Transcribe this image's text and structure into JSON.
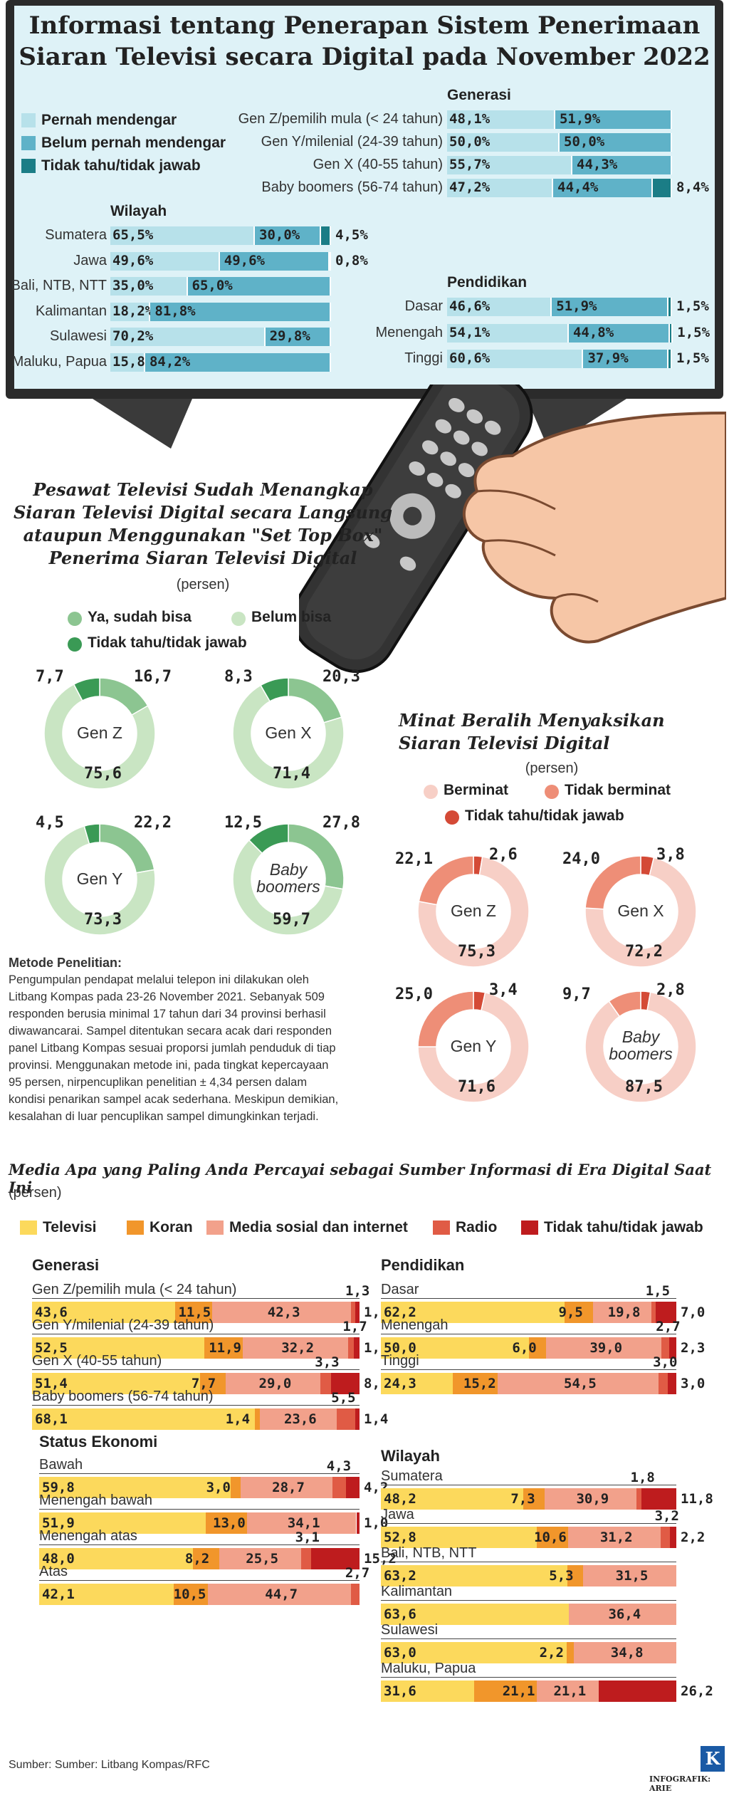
{
  "colors": {
    "heard": "#b7e1ea",
    "not_heard": "#5fb2c8",
    "dont_know_tv": "#1b7d86",
    "yes": "#8cc591",
    "no": "#c9e5c3",
    "dk_green": "#3a9a55",
    "interested": "#f7cfc6",
    "not_interested": "#ee8e77",
    "dk_red": "#d44a36",
    "tv": "#fcd95c",
    "newspaper": "#f1962b",
    "social": "#f2a18b",
    "radio": "#e05b45",
    "dontknow": "#be1c1e"
  },
  "tv_section": {
    "title_line1": "Informasi tentang Penerapan Sistem Penerimaan",
    "title_line2": "Siaran Televisi secara Digital pada November 2022",
    "legend": [
      "Pernah mendengar",
      "Belum pernah mendengar",
      "Tidak tahu/tidak jawab"
    ],
    "generasi_title": "Generasi",
    "wilayah_title": "Wilayah",
    "pendidikan_title": "Pendidikan"
  },
  "remote_icon": "tv-remote-hand-icon",
  "chart_data": [
    {
      "type": "bar",
      "name": "Generasi",
      "categories": [
        "Gen Z/pemilih mula (< 24 tahun)",
        "Gen Y/milenial (24-39 tahun)",
        "Gen X (40-55 tahun)",
        "Baby boomers (56-74 tahun)"
      ],
      "series": [
        {
          "name": "Pernah mendengar",
          "values": [
            48.1,
            50.0,
            55.7,
            47.2
          ],
          "labels": [
            "48,1%",
            "50,0%",
            "55,7%",
            "47,2%"
          ]
        },
        {
          "name": "Belum pernah mendengar",
          "values": [
            51.9,
            50.0,
            44.3,
            44.4
          ],
          "labels": [
            "51,9%",
            "50,0%",
            "44,3%",
            "44,4%"
          ]
        },
        {
          "name": "Tidak tahu/tidak jawab",
          "values": [
            0,
            0,
            0,
            8.4
          ],
          "labels": [
            "",
            "",
            "",
            "8,4%"
          ]
        }
      ]
    },
    {
      "type": "bar",
      "name": "Wilayah",
      "categories": [
        "Sumatera",
        "Jawa",
        "Bali, NTB, NTT",
        "Kalimantan",
        "Sulawesi",
        "Maluku, Papua"
      ],
      "series": [
        {
          "name": "Pernah mendengar",
          "values": [
            65.5,
            49.6,
            35.0,
            18.2,
            70.2,
            15.8
          ],
          "labels": [
            "65,5%",
            "49,6%",
            "35,0%",
            "18,2%",
            "70,2%",
            "15,8%"
          ]
        },
        {
          "name": "Belum pernah mendengar",
          "values": [
            30.0,
            49.6,
            65.0,
            81.8,
            29.8,
            84.2
          ],
          "labels": [
            "30,0%",
            "49,6%",
            "65,0%",
            "81,8%",
            "29,8%",
            "84,2%"
          ]
        },
        {
          "name": "Tidak tahu/tidak jawab",
          "values": [
            4.5,
            0.8,
            0,
            0,
            0,
            0
          ],
          "labels": [
            "4,5%",
            "0,8%",
            "",
            "",
            "",
            ""
          ]
        }
      ]
    },
    {
      "type": "bar",
      "name": "Pendidikan",
      "categories": [
        "Dasar",
        "Menengah",
        "Tinggi"
      ],
      "series": [
        {
          "name": "Pernah mendengar",
          "values": [
            46.6,
            54.1,
            60.6
          ],
          "labels": [
            "46,6%",
            "54,1%",
            "60,6%"
          ]
        },
        {
          "name": "Belum pernah mendengar",
          "values": [
            51.9,
            44.8,
            37.9
          ],
          "labels": [
            "51,9%",
            "44,8%",
            "37,9%"
          ]
        },
        {
          "name": "Tidak tahu/tidak jawab",
          "values": [
            1.5,
            1.5,
            1.5
          ],
          "labels": [
            "1,5%",
            "1,5%",
            "1,5%"
          ]
        }
      ]
    },
    {
      "type": "pie",
      "name": "Pesawat Televisi Sudah Menangkap Siaran Digital",
      "title_lines": [
        "Pesawat Televisi Sudah Menangkap",
        "Siaran Televisi Digital secara Langsung",
        "ataupun Menggunakan \"Set Top Box\"",
        "Penerima Siaran Televisi Digital"
      ],
      "unit": "(persen)",
      "legend": [
        "Ya, sudah bisa",
        "Belum bisa",
        "Tidak tahu/tidak jawab"
      ],
      "donuts": [
        {
          "label": "Gen Z",
          "values": [
            16.7,
            75.6,
            7.7
          ],
          "labels": [
            "16,7",
            "75,6",
            "7,7"
          ]
        },
        {
          "label": "Gen X",
          "values": [
            20.3,
            71.4,
            8.3
          ],
          "labels": [
            "20,3",
            "71,4",
            "8,3"
          ]
        },
        {
          "label": "Gen Y",
          "values": [
            22.2,
            73.3,
            4.5
          ],
          "labels": [
            "22,2",
            "73,3",
            "4,5"
          ]
        },
        {
          "label": "Baby boomers",
          "values": [
            27.8,
            59.7,
            12.5
          ],
          "labels": [
            "27,8",
            "59,7",
            "12,5"
          ]
        }
      ]
    },
    {
      "type": "pie",
      "name": "Minat Beralih Menyaksikan Siaran Televisi Digital",
      "title_lines": [
        "Minat Beralih Menyaksikan",
        "Siaran Televisi Digital"
      ],
      "unit": "(persen)",
      "legend": [
        "Berminat",
        "Tidak berminat",
        "Tidak tahu/tidak jawab"
      ],
      "donuts": [
        {
          "label": "Gen Z",
          "values": [
            75.3,
            22.1,
            2.6
          ],
          "labels": [
            "75,3",
            "22,1",
            "2,6"
          ]
        },
        {
          "label": "Gen X",
          "values": [
            72.2,
            24.0,
            3.8
          ],
          "labels": [
            "72,2",
            "24,0",
            "3,8"
          ]
        },
        {
          "label": "Gen Y",
          "values": [
            71.6,
            25.0,
            3.4
          ],
          "labels": [
            "71,6",
            "25,0",
            "3,4"
          ]
        },
        {
          "label": "Baby boomers",
          "values": [
            87.5,
            9.7,
            2.8
          ],
          "labels": [
            "87,5",
            "9,7",
            "2,8"
          ]
        }
      ]
    },
    {
      "type": "bar",
      "name": "Media Apa yang Paling Anda Percayai",
      "title": "Media Apa yang Paling Anda Percayai sebagai Sumber Informasi di Era Digital Saat Ini",
      "unit": "(persen)",
      "legend": [
        "Televisi",
        "Koran",
        "Media sosial dan internet",
        "Radio",
        "Tidak tahu/tidak jawab"
      ],
      "groups": [
        {
          "title": "Generasi",
          "rows": [
            {
              "label": "Gen Z/pemilih mula (< 24 tahun)",
              "values": [
                43.6,
                11.5,
                42.3,
                1.3,
                1.3
              ],
              "labels": [
                "43,6",
                "11,5",
                "42,3",
                "1,3",
                "1,3"
              ]
            },
            {
              "label": "Gen Y/milenial (24-39 tahun)",
              "values": [
                52.5,
                11.9,
                32.2,
                1.7,
                1.7
              ],
              "labels": [
                "52,5",
                "11,9",
                "32,2",
                "1,7",
                "1,7"
              ]
            },
            {
              "label": "Gen X (40-55 tahun)",
              "values": [
                51.4,
                7.7,
                29.0,
                3.3,
                8.6
              ],
              "labels": [
                "51,4",
                "7,7",
                "29,0",
                "3,3",
                "8,6"
              ]
            },
            {
              "label": "Baby boomers (56-74 tahun)",
              "values": [
                68.1,
                1.4,
                23.6,
                5.5,
                1.4
              ],
              "labels": [
                "68,1",
                "1,4",
                "23,6",
                "5,5",
                "1,4"
              ]
            }
          ]
        },
        {
          "title": "Status Ekonomi",
          "rows": [
            {
              "label": "Bawah",
              "values": [
                59.8,
                3.0,
                28.7,
                4.3,
                4.2
              ],
              "labels": [
                "59,8",
                "3,0",
                "28,7",
                "4,3",
                "4,2"
              ]
            },
            {
              "label": "Menengah bawah",
              "values": [
                51.9,
                13.0,
                34.1,
                0,
                1.0
              ],
              "labels": [
                "51,9",
                "13,0",
                "34,1",
                "",
                "1,0"
              ]
            },
            {
              "label": "Menengah atas",
              "values": [
                48.0,
                8.2,
                25.5,
                3.1,
                15.2
              ],
              "labels": [
                "48,0",
                "8,2",
                "25,5",
                "3,1",
                "15,2"
              ]
            },
            {
              "label": "Atas",
              "values": [
                42.1,
                10.5,
                44.7,
                2.7,
                0
              ],
              "labels": [
                "42,1",
                "10,5",
                "44,7",
                "2,7",
                ""
              ]
            }
          ]
        },
        {
          "title": "Pendidikan",
          "rows": [
            {
              "label": "Dasar",
              "values": [
                62.2,
                9.5,
                19.8,
                1.5,
                7.0
              ],
              "labels": [
                "62,2",
                "9,5",
                "19,8",
                "1,5",
                "7,0"
              ]
            },
            {
              "label": "Menengah",
              "values": [
                50.0,
                6.0,
                39.0,
                2.7,
                2.3
              ],
              "labels": [
                "50,0",
                "6,0",
                "39,0",
                "2,7",
                "2,3"
              ]
            },
            {
              "label": "Tinggi",
              "values": [
                24.3,
                15.2,
                54.5,
                3.0,
                3.0
              ],
              "labels": [
                "24,3",
                "15,2",
                "54,5",
                "3,0",
                "3,0"
              ]
            }
          ]
        },
        {
          "title": "Wilayah",
          "rows": [
            {
              "label": "Sumatera",
              "values": [
                48.2,
                7.3,
                30.9,
                1.8,
                11.8
              ],
              "labels": [
                "48,2",
                "7,3",
                "30,9",
                "1,8",
                "11,8"
              ]
            },
            {
              "label": "Jawa",
              "values": [
                52.8,
                10.6,
                31.2,
                3.2,
                2.2
              ],
              "labels": [
                "52,8",
                "10,6",
                "31,2",
                "3,2",
                "2,2"
              ]
            },
            {
              "label": "Bali, NTB, NTT",
              "values": [
                63.2,
                5.3,
                31.5,
                0,
                0
              ],
              "labels": [
                "63,2",
                "5,3",
                "31,5",
                "",
                ""
              ]
            },
            {
              "label": "Kalimantan",
              "values": [
                63.6,
                0,
                36.4,
                0,
                0
              ],
              "labels": [
                "63,6",
                "",
                "36,4",
                "",
                ""
              ]
            },
            {
              "label": "Sulawesi",
              "values": [
                63.0,
                2.2,
                34.8,
                0,
                0
              ],
              "labels": [
                "63,0",
                "2,2",
                "34,8",
                "",
                ""
              ]
            },
            {
              "label": "Maluku, Papua",
              "values": [
                31.6,
                21.1,
                21.1,
                0,
                26.2
              ],
              "labels": [
                "31,6",
                "21,1",
                "21,1",
                "",
                "26,2"
              ]
            }
          ]
        }
      ]
    }
  ],
  "method": {
    "title": "Metode Penelitian:",
    "lines": [
      "Pengumpulan pendapat melalui telepon ini dilakukan oleh",
      "Litbang Kompas pada 23-26 November 2021. Sebanyak 509",
      "responden berusia minimal 17 tahun dari 34 provinsi berhasil",
      "diwawancarai. Sampel ditentukan secara acak dari responden",
      "panel Litbang Kompas sesuai proporsi jumlah penduduk di tiap",
      "provinsi. Menggunakan metode ini, pada tingkat kepercayaan",
      "95 persen, nirpencuplikan penelitian ± 4,34 persen dalam",
      "kondisi penarikan sampel acak sederhana. Meskipun demikian,",
      "kesalahan di luar pencuplikan sampel dimungkinkan terjadi."
    ]
  },
  "footer": {
    "source": "Sumber: Sumber: Litbang Kompas/RFC",
    "logo": "K",
    "credit": "INFOGRAFIK: ARIE"
  }
}
